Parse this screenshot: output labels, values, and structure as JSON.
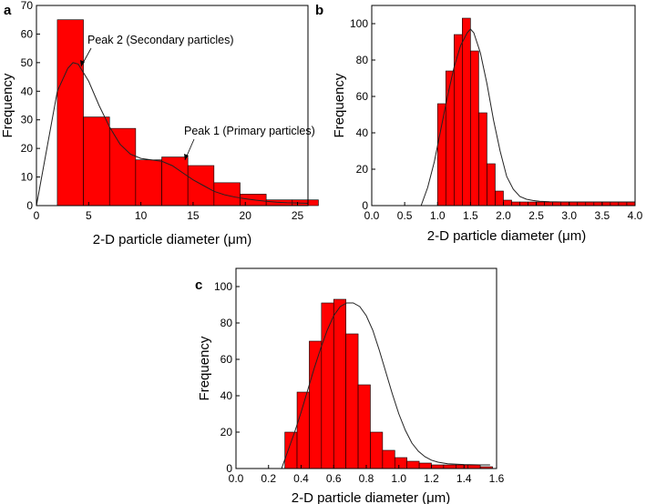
{
  "chart_data": [
    {
      "panel_label": "a",
      "type": "bar",
      "bin_edges": [
        2,
        4.5,
        7,
        9.5,
        12,
        14.5,
        17,
        19.5,
        22,
        24.5,
        27
      ],
      "values": [
        65,
        31,
        27,
        16,
        17,
        14,
        8,
        4,
        2,
        2,
        1
      ],
      "fit_curve": {
        "x": [
          0,
          1,
          2,
          3,
          3.5,
          4,
          5,
          6,
          7,
          8,
          9,
          10,
          11,
          12,
          13,
          14,
          15,
          16,
          17,
          18,
          19,
          20,
          21,
          22,
          23,
          24,
          25,
          26
        ],
        "y": [
          0,
          20,
          40,
          48,
          50,
          49.5,
          43.5,
          35,
          27.5,
          21.5,
          18,
          16.5,
          16,
          15.5,
          14,
          11.5,
          9,
          7,
          5,
          3.8,
          3,
          2.4,
          1.9,
          1.5,
          1.2,
          1,
          0.9,
          0.8
        ]
      },
      "xlabel": "2-D particle diameter (μm)",
      "ylabel": "Frequency",
      "xlim": [
        0,
        26
      ],
      "ylim": [
        0,
        70
      ],
      "xticks": [
        "0",
        "5",
        "10",
        "15",
        "20",
        "25"
      ],
      "yticks": [
        "0",
        "10",
        "20",
        "30",
        "40",
        "50",
        "60",
        "70"
      ],
      "annotations": [
        {
          "text": "Peak 2 (Secondary particles)",
          "x": 3.5,
          "y": 50
        },
        {
          "text": "Peak 1 (Primary particles)",
          "x": 12,
          "y": 15.5
        }
      ]
    },
    {
      "panel_label": "b",
      "type": "bar",
      "bin_edges": [
        1.0,
        1.125,
        1.25,
        1.375,
        1.5,
        1.625,
        1.75,
        1.875,
        2.0,
        2.125,
        2.25,
        2.375,
        2.5,
        2.625,
        2.75,
        2.875,
        3.0,
        3.125,
        3.25,
        3.375,
        3.5,
        3.625,
        3.75,
        3.875,
        4.0
      ],
      "values": [
        56,
        74,
        94,
        103,
        85,
        51,
        23,
        8,
        3,
        2,
        2,
        2,
        2,
        2,
        2,
        2,
        2,
        2,
        2,
        2,
        2,
        2,
        2,
        2
      ],
      "fit_curve": {
        "x": [
          0.75,
          0.85,
          0.95,
          1.05,
          1.15,
          1.25,
          1.35,
          1.45,
          1.5,
          1.55,
          1.65,
          1.75,
          1.85,
          1.95,
          2.05,
          2.15,
          2.25,
          2.35,
          2.45,
          2.55,
          2.7,
          2.9,
          3.2,
          3.6,
          4.0
        ],
        "y": [
          0,
          10,
          24,
          42,
          60,
          76,
          88,
          95,
          97,
          95,
          84,
          67,
          47,
          30,
          16,
          9,
          5,
          3.5,
          2.8,
          2.4,
          2.1,
          2,
          2,
          2,
          2
        ]
      },
      "xlabel": "2-D particle diameter (μm)",
      "ylabel": "Frequency",
      "xlim": [
        0,
        4
      ],
      "ylim": [
        0,
        110
      ],
      "xticks": [
        "0.0",
        "0.5",
        "1.0",
        "1.5",
        "2.0",
        "2.5",
        "3.0",
        "3.5",
        "4.0"
      ],
      "yticks": [
        "0",
        "20",
        "40",
        "60",
        "80",
        "100"
      ]
    },
    {
      "panel_label": "c",
      "type": "bar",
      "bin_edges": [
        0.3,
        0.375,
        0.45,
        0.525,
        0.6,
        0.675,
        0.75,
        0.825,
        0.9,
        0.975,
        1.05,
        1.125,
        1.2,
        1.275,
        1.35,
        1.425,
        1.5,
        1.575
      ],
      "values": [
        20,
        42,
        70,
        91,
        93,
        74,
        46,
        20,
        10,
        6,
        4,
        3,
        2,
        2,
        2,
        2,
        1
      ],
      "fit_curve": {
        "x": [
          0.28,
          0.32,
          0.36,
          0.4,
          0.44,
          0.48,
          0.52,
          0.56,
          0.6,
          0.64,
          0.68,
          0.72,
          0.76,
          0.8,
          0.84,
          0.88,
          0.92,
          0.96,
          1.0,
          1.04,
          1.08,
          1.12,
          1.16,
          1.2,
          1.24,
          1.3,
          1.4,
          1.5,
          1.56
        ],
        "y": [
          0,
          10,
          20,
          31,
          43,
          55,
          66,
          76,
          84,
          89,
          91,
          91,
          89,
          84,
          76,
          65,
          53,
          41,
          30,
          21,
          14,
          9.5,
          6.5,
          4.6,
          3.5,
          2.6,
          2.2,
          2,
          2
        ]
      },
      "xlabel": "2-D particle diameter (μm)",
      "ylabel": "Frequency",
      "xlim": [
        0,
        1.6
      ],
      "ylim": [
        0,
        110
      ],
      "xticks": [
        "0.0",
        "0.2",
        "0.4",
        "0.6",
        "0.8",
        "1.0",
        "1.2",
        "1.4",
        "1.6"
      ],
      "yticks": [
        "0",
        "20",
        "40",
        "60",
        "80",
        "100"
      ]
    }
  ]
}
